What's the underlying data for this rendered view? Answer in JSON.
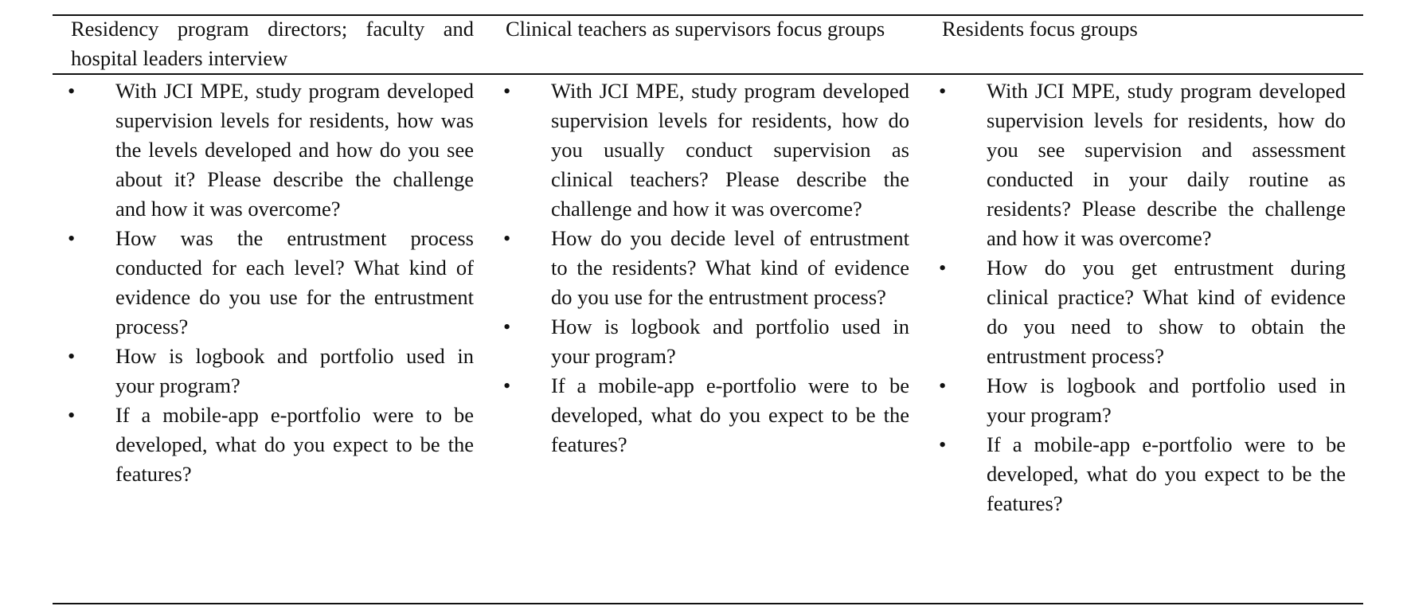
{
  "table": {
    "headers": [
      "Residency program directors; faculty and hospital leaders interview",
      "Clinical teachers as supervisors focus groups",
      "Residents focus groups"
    ],
    "columns": [
      [
        "With JCI MPE, study program developed supervision levels for residents, how was the levels developed and how do you see about it? Please describe the challenge and how it was overcome?",
        "How was the entrustment process conducted for each level? What kind of evidence do you use for the entrustment process?",
        "How is logbook and portfolio used in your program?",
        "If a mobile-app e-portfolio were to be developed, what do you expect to be the features?"
      ],
      [
        "With JCI MPE, study program developed supervision levels for residents, how do you usually conduct supervision as clinical teachers? Please describe the challenge and how it was overcome?",
        "How do you decide level of entrustment to the residents? What kind of evidence do you use for the entrustment process?",
        "How is logbook and portfolio used in your program?",
        "If a mobile-app e-portfolio were to be developed, what do you expect to be the features?"
      ],
      [
        "With JCI MPE, study program developed supervision levels for residents, how do you see supervision and assessment conducted in your daily routine as residents? Please describe the challenge and how it was overcome?",
        "How do you get entrustment during clinical practice? What kind of evidence do you need to show to obtain the entrustment process?",
        "How is logbook and portfolio used in your program?",
        "If a mobile-app e-portfolio were to be developed, what do you expect to be the features?"
      ]
    ],
    "bullet": "•"
  }
}
